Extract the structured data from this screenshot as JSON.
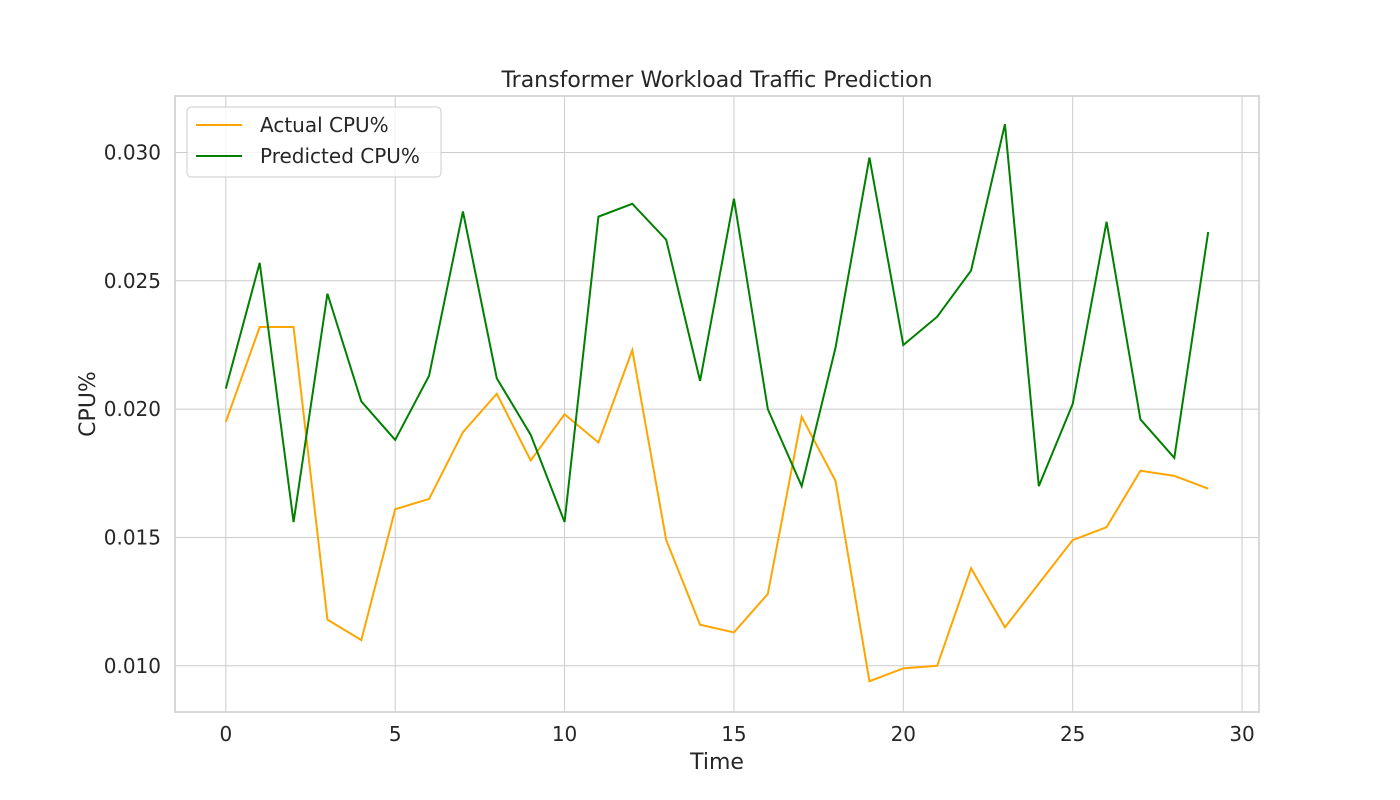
{
  "chart_data": {
    "type": "line",
    "title": "Transformer Workload Traffic Prediction",
    "xlabel": "Time",
    "ylabel": "CPU%",
    "xlim": [
      -1.5,
      30.5
    ],
    "ylim": [
      0.0082,
      0.0322
    ],
    "xticks": [
      0,
      5,
      10,
      15,
      20,
      25,
      30
    ],
    "xtick_labels": [
      "0",
      "5",
      "10",
      "15",
      "20",
      "25",
      "30"
    ],
    "yticks": [
      0.01,
      0.015,
      0.02,
      0.025,
      0.03
    ],
    "ytick_labels": [
      "0.010",
      "0.015",
      "0.020",
      "0.025",
      "0.030"
    ],
    "grid": true,
    "legend_position": "top-left",
    "x": [
      0,
      1,
      2,
      3,
      4,
      5,
      6,
      7,
      8,
      9,
      10,
      11,
      12,
      13,
      14,
      15,
      16,
      17,
      18,
      19,
      20,
      21,
      22,
      23,
      24,
      25,
      26,
      27,
      28,
      29
    ],
    "series": [
      {
        "name": "Actual CPU%",
        "color": "#FFA500",
        "values": [
          0.0195,
          0.0232,
          0.0232,
          0.0118,
          0.011,
          0.0161,
          0.0165,
          0.0191,
          0.0206,
          0.018,
          0.0198,
          0.0187,
          0.0223,
          0.0149,
          0.0116,
          0.0113,
          0.0128,
          0.0197,
          0.0172,
          0.0094,
          0.0099,
          0.01,
          0.0138,
          0.0115,
          0.0132,
          0.0149,
          0.0154,
          0.0176,
          0.0174,
          0.0169
        ]
      },
      {
        "name": "Predicted CPU%",
        "color": "#008000",
        "values": [
          0.0208,
          0.0257,
          0.0156,
          0.0245,
          0.0203,
          0.0188,
          0.0213,
          0.0277,
          0.0212,
          0.019,
          0.0156,
          0.0275,
          0.028,
          0.0266,
          0.0211,
          0.0282,
          0.02,
          0.017,
          0.0224,
          0.0298,
          0.0225,
          0.0236,
          0.0254,
          0.0311,
          0.017,
          0.0202,
          0.0273,
          0.0196,
          0.0181,
          0.0269
        ]
      }
    ]
  }
}
